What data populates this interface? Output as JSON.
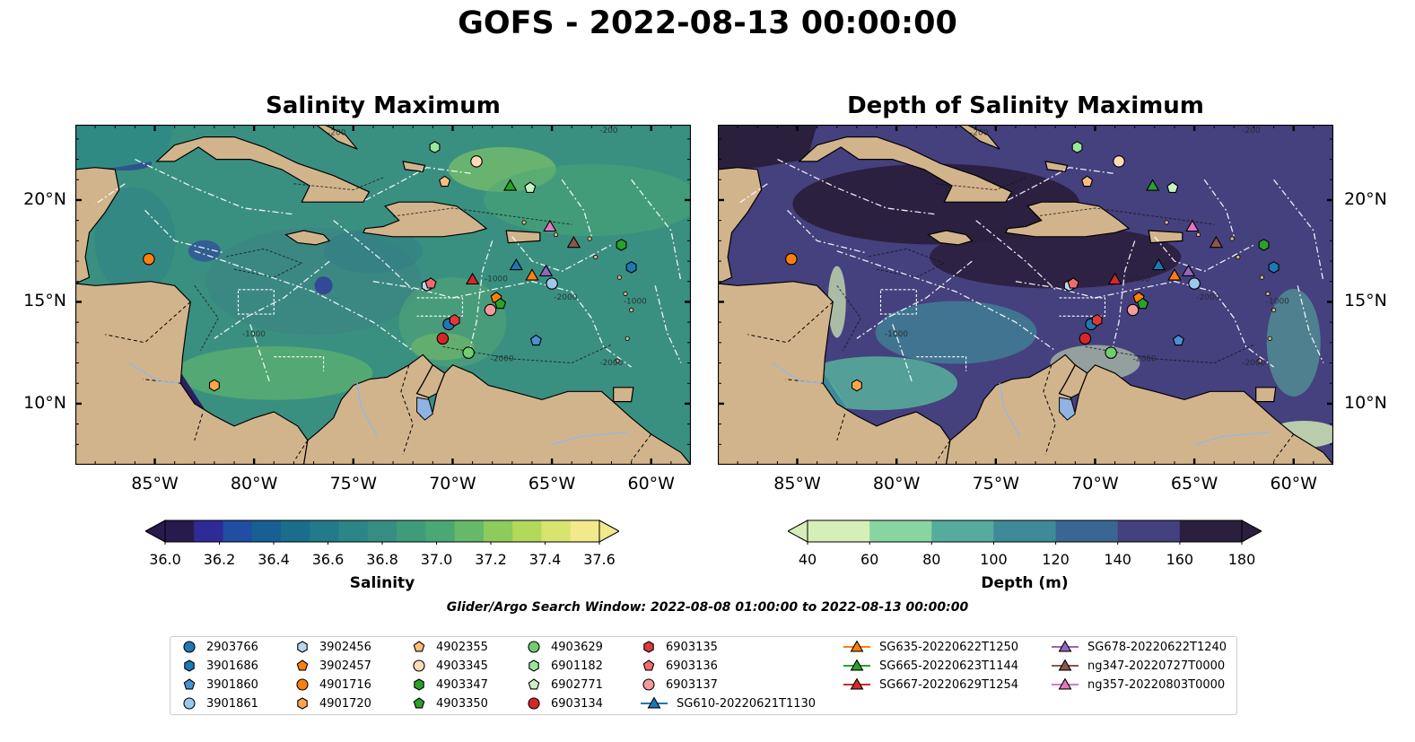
{
  "title": "GOFS - 2022-08-13 00:00:00",
  "panels": [
    {
      "title": "Salinity Maximum"
    },
    {
      "title": "Depth of Salinity Maximum"
    }
  ],
  "axes": {
    "lon_ticks": [
      "85°W",
      "80°W",
      "75°W",
      "70°W",
      "65°W",
      "60°W"
    ],
    "lat_ticks": [
      "20°N",
      "15°N",
      "10°N"
    ]
  },
  "contour_labels": [
    "-200",
    "-200",
    "-1000",
    "-1000",
    "-1000",
    "-2000",
    "-2000",
    "-2000"
  ],
  "colorbars": [
    {
      "label": "Salinity",
      "ticks": [
        "36.0",
        "36.2",
        "36.4",
        "36.6",
        "36.8",
        "37.0",
        "37.2",
        "37.4",
        "37.6"
      ],
      "colors": [
        "#261b4c",
        "#2e2a96",
        "#1f4ea3",
        "#185f93",
        "#1a6e8c",
        "#237a89",
        "#2d8686",
        "#368e82",
        "#3f9c7b",
        "#4aa874",
        "#66b968",
        "#8ccb5c",
        "#b2d95a",
        "#d8e470",
        "#f2e98d"
      ]
    },
    {
      "label": "Depth (m)",
      "ticks": [
        "40",
        "60",
        "80",
        "100",
        "120",
        "140",
        "160",
        "180"
      ],
      "colors": [
        "#d6efb8",
        "#88d5a1",
        "#55ab9c",
        "#3f8a98",
        "#3a6694",
        "#45407e",
        "#2a1f3d"
      ]
    }
  ],
  "search_window": "Glider/Argo Search Window: 2022-08-08 01:00:00 to 2022-08-13 00:00:00",
  "legend": [
    {
      "label": "2903766",
      "marker": "circle",
      "color": "#1f77b4"
    },
    {
      "label": "3901686",
      "marker": "hexagon",
      "color": "#1f77b4"
    },
    {
      "label": "3901860",
      "marker": "pentagon",
      "color": "#4c8fd1"
    },
    {
      "label": "3901861",
      "marker": "circle",
      "color": "#9cc8eb"
    },
    {
      "label": "3902456",
      "marker": "hexagon",
      "color": "#b7d8f0"
    },
    {
      "label": "3902457",
      "marker": "pentagon",
      "color": "#ff7f0e"
    },
    {
      "label": "4901716",
      "marker": "circle",
      "color": "#ff7f0e"
    },
    {
      "label": "4901720",
      "marker": "hexagon",
      "color": "#ffa64a"
    },
    {
      "label": "4902355",
      "marker": "pentagon",
      "color": "#ffbe7d"
    },
    {
      "label": "4903345",
      "marker": "circle",
      "color": "#ffdcb8"
    },
    {
      "label": "4903347",
      "marker": "hexagon",
      "color": "#2ca02c"
    },
    {
      "label": "4903350",
      "marker": "pentagon",
      "color": "#2ca02c"
    },
    {
      "label": "4903629",
      "marker": "circle",
      "color": "#6fcf6f"
    },
    {
      "label": "6901182",
      "marker": "hexagon",
      "color": "#98e89a"
    },
    {
      "label": "6902771",
      "marker": "pentagon",
      "color": "#c9f2c3"
    },
    {
      "label": "6903134",
      "marker": "circle",
      "color": "#d62728"
    },
    {
      "label": "6903135",
      "marker": "hexagon",
      "color": "#e0393b"
    },
    {
      "label": "6903136",
      "marker": "pentagon",
      "color": "#f06b70"
    },
    {
      "label": "6903137",
      "marker": "circle",
      "color": "#f49a9a"
    },
    {
      "label": "SG610-20220621T1130",
      "marker": "triangle",
      "color": "#1f77b4"
    },
    {
      "label": "SG635-20220622T1250",
      "marker": "triangle",
      "color": "#ff7f0e"
    },
    {
      "label": "SG665-20220623T1144",
      "marker": "triangle",
      "color": "#2ca02c"
    },
    {
      "label": "SG667-20220629T1254",
      "marker": "triangle",
      "color": "#d62728"
    },
    {
      "label": "SG678-20220622T1240",
      "marker": "triangle",
      "color": "#9467bd"
    },
    {
      "label": "ng347-20220727T0000",
      "marker": "triangle",
      "color": "#8c564b"
    },
    {
      "label": "ng357-20220803T0000",
      "marker": "triangle",
      "color": "#e377c2"
    }
  ],
  "observations": [
    {
      "id": "2903766",
      "lon": -70.2,
      "lat": 13.9
    },
    {
      "id": "3901686",
      "lon": -61.0,
      "lat": 16.7
    },
    {
      "id": "3901860",
      "lon": -65.8,
      "lat": 13.1
    },
    {
      "id": "3901861",
      "lon": -65.0,
      "lat": 15.9
    },
    {
      "id": "3902456",
      "lon": -71.3,
      "lat": 15.8
    },
    {
      "id": "3902457",
      "lon": -67.8,
      "lat": 15.2
    },
    {
      "id": "4901716",
      "lon": -85.3,
      "lat": 17.1
    },
    {
      "id": "4901720",
      "lon": -82.0,
      "lat": 10.9
    },
    {
      "id": "4902355",
      "lon": -70.4,
      "lat": 20.9
    },
    {
      "id": "4903345",
      "lon": -68.8,
      "lat": 21.9
    },
    {
      "id": "4903347",
      "lon": -61.5,
      "lat": 17.8
    },
    {
      "id": "4903350",
      "lon": -67.6,
      "lat": 14.9
    },
    {
      "id": "4903629",
      "lon": -69.2,
      "lat": 12.5
    },
    {
      "id": "6901182",
      "lon": -70.9,
      "lat": 22.6
    },
    {
      "id": "6902771",
      "lon": -66.1,
      "lat": 20.6
    },
    {
      "id": "6903134",
      "lon": -70.5,
      "lat": 13.2
    },
    {
      "id": "6903135",
      "lon": -69.9,
      "lat": 14.1
    },
    {
      "id": "6903136",
      "lon": -71.1,
      "lat": 15.9
    },
    {
      "id": "6903137",
      "lon": -68.1,
      "lat": 14.6
    },
    {
      "id": "SG610-20220621T1130",
      "lon": -66.8,
      "lat": 16.8
    },
    {
      "id": "SG635-20220622T1250",
      "lon": -66.0,
      "lat": 16.3
    },
    {
      "id": "SG665-20220623T1144",
      "lon": -67.1,
      "lat": 20.7
    },
    {
      "id": "SG667-20220629T1254",
      "lon": -69.0,
      "lat": 16.1
    },
    {
      "id": "SG678-20220622T1240",
      "lon": -65.3,
      "lat": 16.5
    },
    {
      "id": "ng347-20220727T0000",
      "lon": -63.9,
      "lat": 17.9
    },
    {
      "id": "ng357-20220803T0000",
      "lon": -65.1,
      "lat": 18.7
    }
  ]
}
